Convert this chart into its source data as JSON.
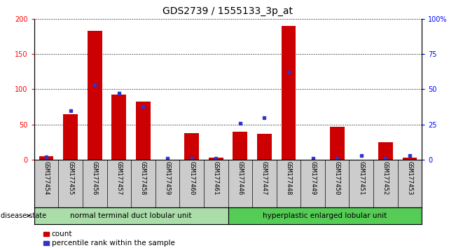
{
  "title": "GDS2739 / 1555133_3p_at",
  "categories": [
    "GSM177454",
    "GSM177455",
    "GSM177456",
    "GSM177457",
    "GSM177458",
    "GSM177459",
    "GSM177460",
    "GSM177461",
    "GSM177446",
    "GSM177447",
    "GSM177448",
    "GSM177449",
    "GSM177450",
    "GSM177451",
    "GSM177452",
    "GSM177453"
  ],
  "counts": [
    5,
    65,
    183,
    93,
    83,
    0,
    38,
    3,
    40,
    37,
    190,
    0,
    47,
    0,
    25,
    3
  ],
  "percentiles": [
    2,
    35,
    53,
    47,
    38,
    1,
    1,
    1,
    26,
    30,
    62,
    1,
    1,
    3,
    1,
    3
  ],
  "ylim_left": [
    0,
    200
  ],
  "ylim_right": [
    0,
    100
  ],
  "yticks_left": [
    0,
    50,
    100,
    150,
    200
  ],
  "yticks_right": [
    0,
    25,
    50,
    75,
    100
  ],
  "group1_label": "normal terminal duct lobular unit",
  "group1_count": 8,
  "group2_label": "hyperplastic enlarged lobular unit",
  "group2_count": 8,
  "disease_state_label": "disease state",
  "legend_count_label": "count",
  "legend_percentile_label": "percentile rank within the sample",
  "bar_color": "#cc0000",
  "dot_color": "#3333cc",
  "group1_bg": "#aaddaa",
  "group2_bg": "#55cc55",
  "axis_bg": "#cccccc",
  "title_fontsize": 10,
  "tick_fontsize": 7,
  "label_fontsize": 8
}
